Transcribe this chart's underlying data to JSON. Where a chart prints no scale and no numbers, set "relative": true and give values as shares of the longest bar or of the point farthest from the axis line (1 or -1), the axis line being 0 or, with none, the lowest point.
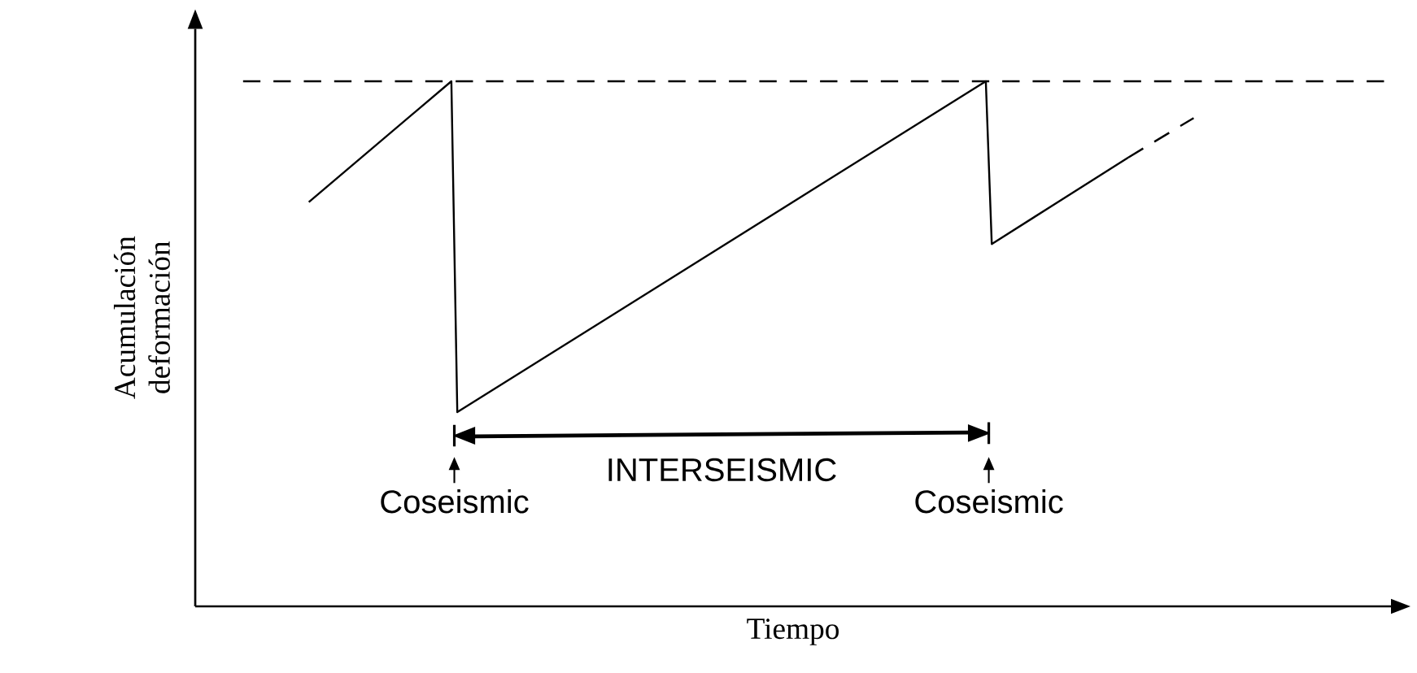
{
  "chart_data": {
    "type": "line",
    "relative": true,
    "xlabel": "Tiempo",
    "ylabel": "Acumulación deformación",
    "categories": [
      null,
      null,
      null,
      null,
      null,
      null,
      null,
      null,
      null,
      null,
      null,
      null,
      null,
      null,
      null,
      null,
      null,
      null,
      null,
      null,
      null,
      null,
      null,
      null,
      null,
      null,
      null,
      null,
      null,
      null,
      null,
      null,
      null,
      null,
      null,
      null,
      null,
      null,
      null,
      null,
      null,
      null,
      null,
      null,
      null,
      null,
      null,
      null,
      null,
      null,
      null,
      null,
      null,
      null,
      null,
      null,
      null,
      null,
      null,
      null,
      null,
      null,
      null,
      null,
      null,
      null,
      null,
      null,
      null,
      null,
      null,
      null,
      null,
      null,
      null,
      null,
      null,
      null,
      null,
      null,
      null,
      null,
      null,
      null,
      null,
      null,
      null,
      null,
      null,
      null,
      null,
      null,
      null,
      null,
      null,
      null,
      null,
      null,
      null,
      null,
      null,
      null,
      null,
      null,
      null,
      null,
      null,
      null,
      null,
      null,
      null,
      null,
      null,
      null,
      null,
      null,
      null,
      null,
      null,
      null,
      null,
      null,
      null,
      null,
      null,
      null,
      null,
      null,
      null,
      null,
      null,
      null,
      null,
      null,
      null,
      null,
      null,
      null,
      null,
      null,
      null,
      null,
      null,
      null,
      null,
      null,
      null,
      null,
      null,
      null
    ],
    "series": [
      {
        "color": "#000000",
        "line_style": "solid",
        "values": [
          0.77,
          null,
          null,
          null,
          null,
          null,
          null,
          null,
          null,
          null,
          null,
          null,
          null,
          null,
          null,
          null,
          null,
          null,
          null,
          null,
          null,
          null,
          null,
          null,
          1,
          0.37,
          null,
          null,
          null,
          null,
          null,
          null,
          null,
          null,
          null,
          null,
          null,
          null,
          null,
          null,
          null,
          null,
          null,
          null,
          null,
          null,
          null,
          null,
          null,
          null,
          null,
          null,
          null,
          null,
          null,
          null,
          null,
          null,
          null,
          null,
          null,
          null,
          null,
          null,
          null,
          null,
          null,
          null,
          null,
          null,
          null,
          null,
          null,
          null,
          null,
          null,
          null,
          null,
          null,
          null,
          null,
          null,
          null,
          null,
          null,
          null,
          null,
          null,
          null,
          null,
          null,
          null,
          null,
          null,
          null,
          null,
          null,
          null,
          null,
          null,
          null,
          null,
          null,
          null,
          null,
          null,
          null,
          null,
          null,
          null,
          null,
          null,
          null,
          null,
          1,
          0.69,
          null,
          null,
          null,
          null,
          null,
          null,
          null,
          null,
          null,
          null,
          null,
          null,
          null,
          null,
          null,
          null,
          null,
          null,
          null,
          null,
          null,
          null,
          0.855,
          null,
          null,
          null,
          null,
          null,
          null,
          null,
          null,
          null,
          null,
          null
        ]
      },
      {
        "color": "#000000",
        "line_style": "dashed",
        "values": [
          null,
          null,
          null,
          null,
          null,
          null,
          null,
          null,
          null,
          null,
          null,
          null,
          null,
          null,
          null,
          null,
          null,
          null,
          null,
          null,
          null,
          null,
          null,
          null,
          null,
          null,
          null,
          null,
          null,
          null,
          null,
          null,
          null,
          null,
          null,
          null,
          null,
          null,
          null,
          null,
          null,
          null,
          null,
          null,
          null,
          null,
          null,
          null,
          null,
          null,
          null,
          null,
          null,
          null,
          null,
          null,
          null,
          null,
          null,
          null,
          null,
          null,
          null,
          null,
          null,
          null,
          null,
          null,
          null,
          null,
          null,
          null,
          null,
          null,
          null,
          null,
          null,
          null,
          null,
          null,
          null,
          null,
          null,
          null,
          null,
          null,
          null,
          null,
          null,
          null,
          null,
          null,
          null,
          null,
          null,
          null,
          null,
          null,
          null,
          null,
          null,
          null,
          null,
          null,
          null,
          null,
          null,
          null,
          null,
          null,
          null,
          null,
          null,
          null,
          null,
          null,
          null,
          null,
          null,
          null,
          null,
          null,
          null,
          null,
          null,
          null,
          null,
          null,
          null,
          null,
          null,
          null,
          null,
          null,
          null,
          null,
          null,
          null,
          0.855,
          null,
          null,
          null,
          null,
          null,
          null,
          null,
          null,
          null,
          null,
          0.93
        ]
      }
    ],
    "ref_lines": [
      {
        "axis": "y",
        "value": 1,
        "line_style": "dashed",
        "color": "#000000"
      }
    ],
    "annotations": [
      "INTERSEISMIC",
      "Coseismic",
      "Coseismic"
    ]
  }
}
